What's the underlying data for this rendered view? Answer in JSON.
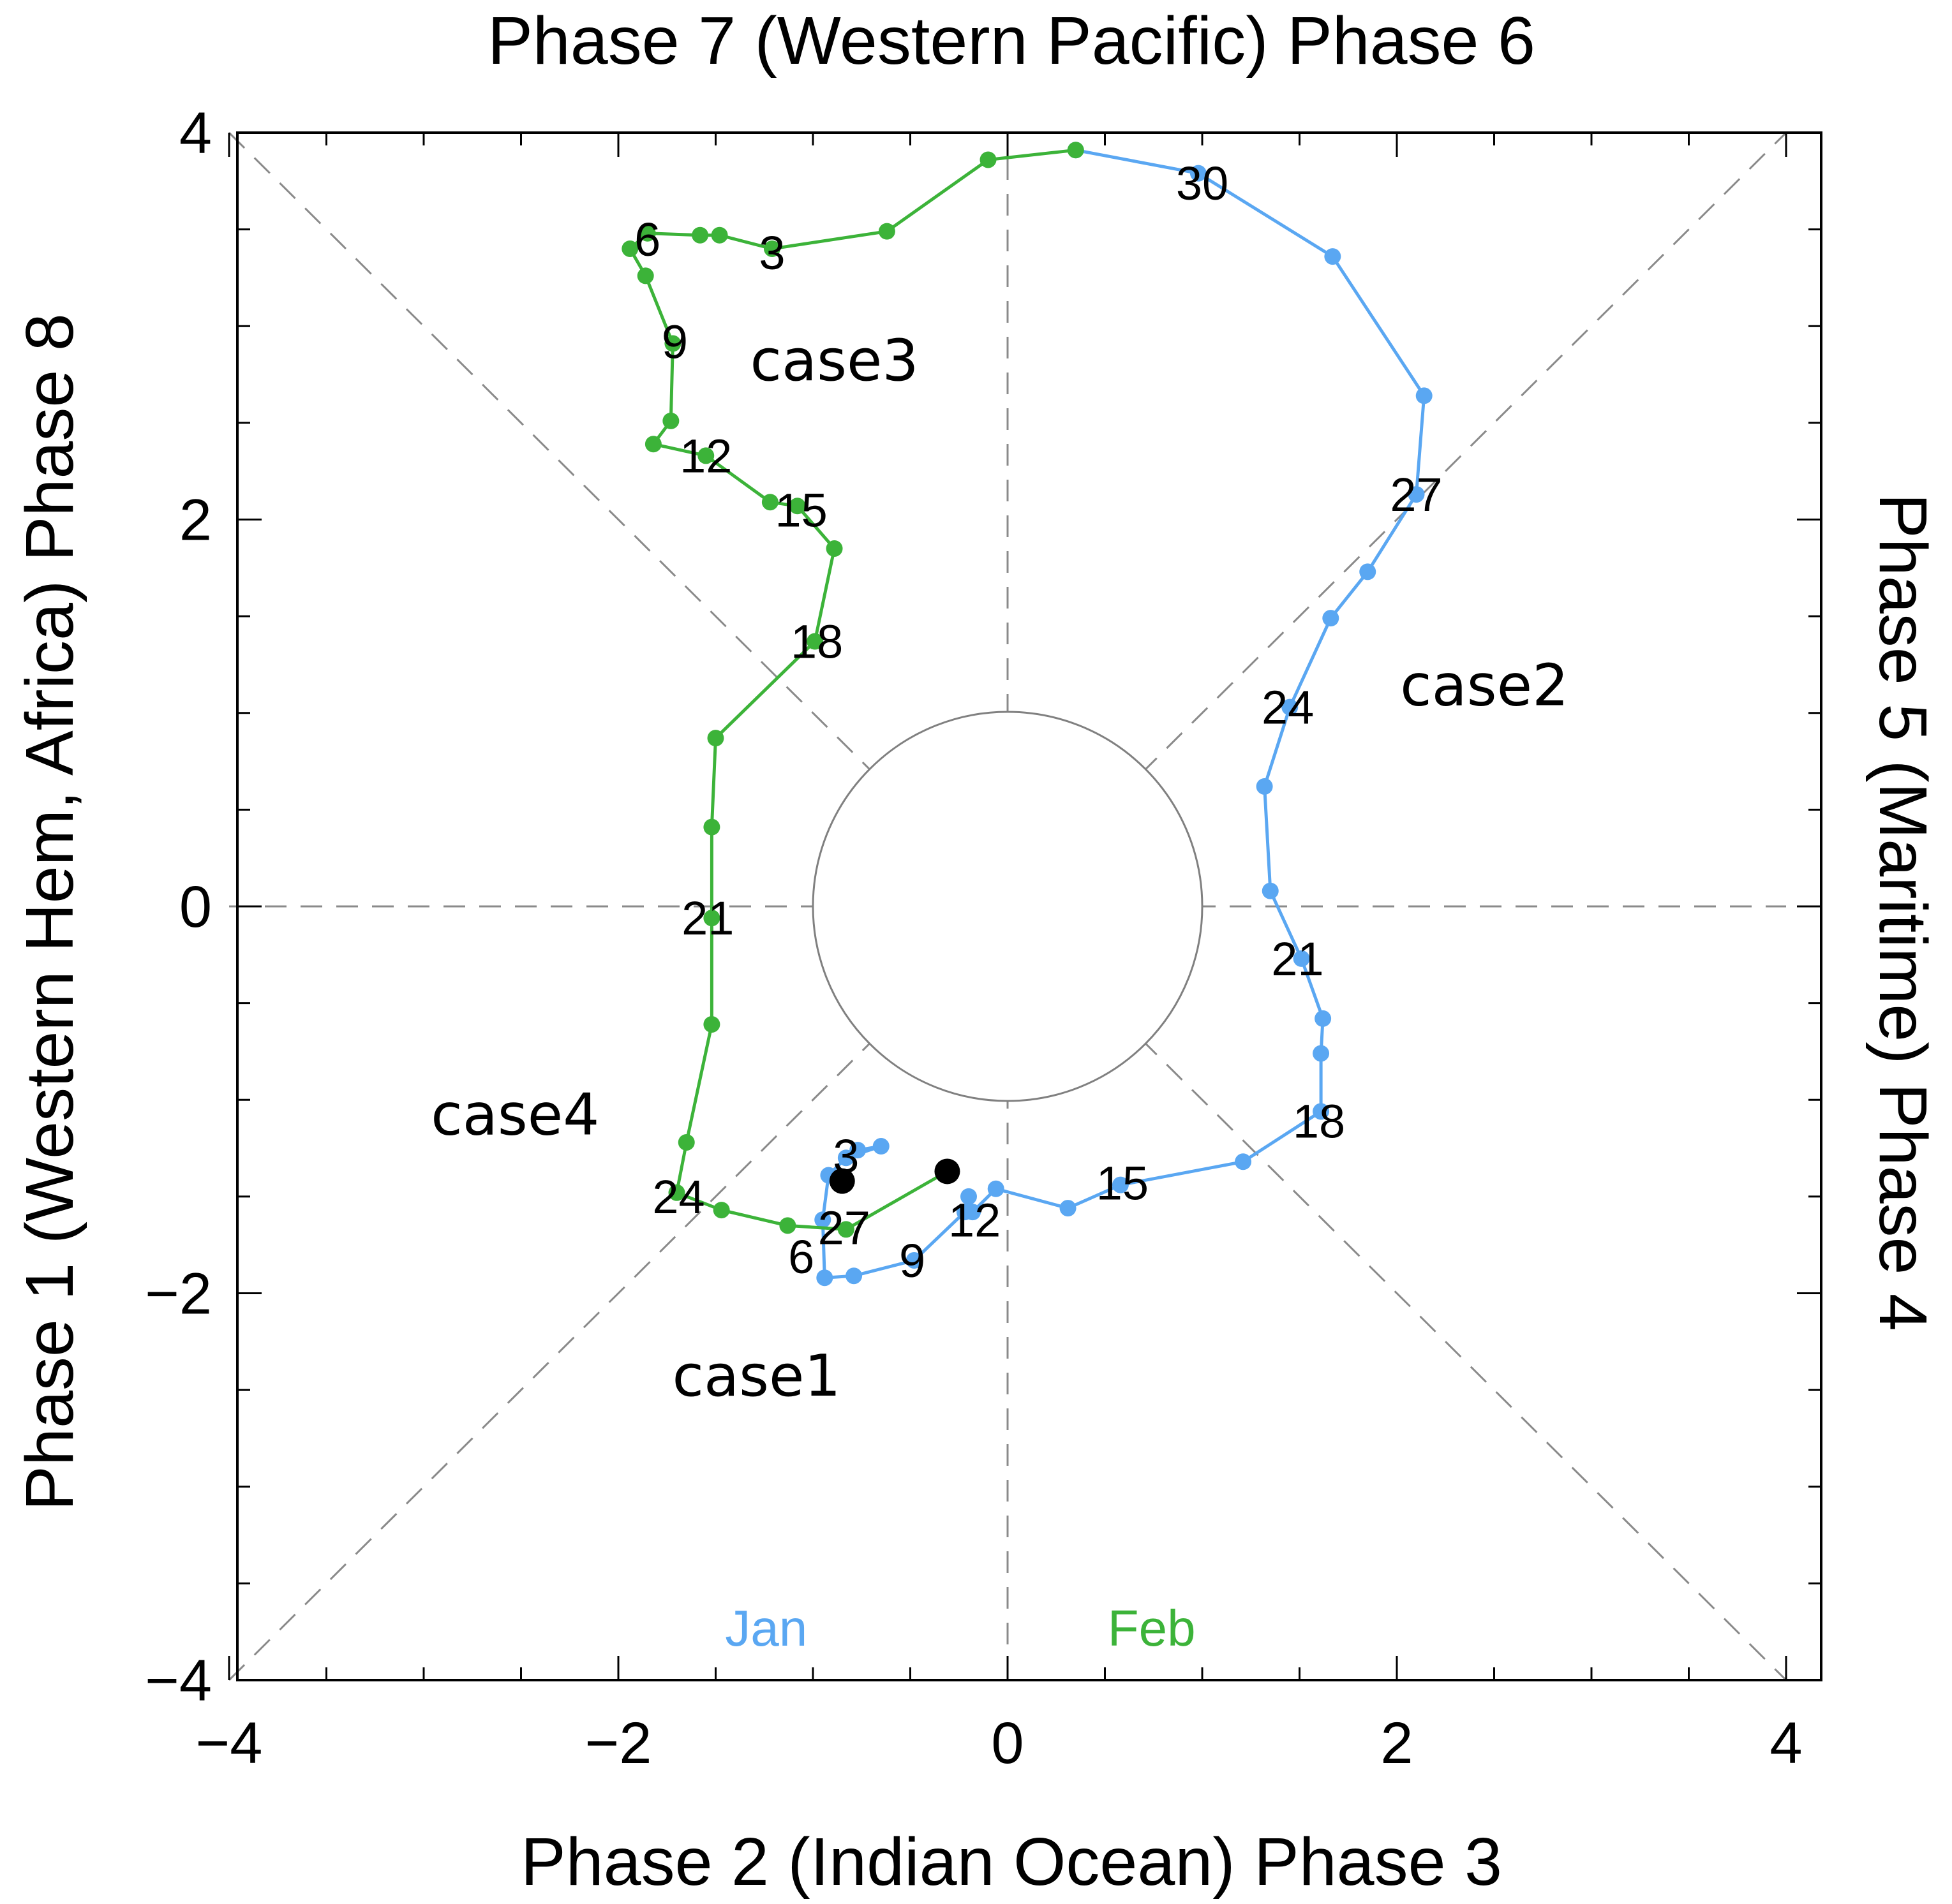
{
  "chart_data": {
    "type": "line",
    "title_top": "Phase 7 (Western Pacific) Phase 6",
    "xlabel": "Phase 2 (Indian Ocean) Phase 3",
    "ylabel": "Phase 1 (Western Hem, Africa) Phase 8",
    "ylabel_right": "Phase 5 (Maritime) Phase 4",
    "xlim": [
      -4,
      4
    ],
    "ylim": [
      -4,
      4
    ],
    "xticks": [
      {
        "value": -4,
        "label": "−4"
      },
      {
        "value": -2,
        "label": "−2"
      },
      {
        "value": 0,
        "label": "0"
      },
      {
        "value": 2,
        "label": "2"
      },
      {
        "value": 4,
        "label": "4"
      }
    ],
    "yticks": [
      {
        "value": -4,
        "label": "−4"
      },
      {
        "value": -2,
        "label": "−2"
      },
      {
        "value": 0,
        "label": "0"
      },
      {
        "value": 2,
        "label": "2"
      },
      {
        "value": 4,
        "label": "4"
      }
    ],
    "unit_circle_radius": 1,
    "series": [
      {
        "name": "Jan",
        "color": "#5aa7f2",
        "points": [
          {
            "x": -0.77,
            "y": -1.26
          },
          {
            "x": -0.65,
            "y": -1.24
          },
          {
            "x": -0.83,
            "y": -1.3
          },
          {
            "x": -0.92,
            "y": -1.39
          },
          {
            "x": -0.95,
            "y": -1.62
          },
          {
            "x": -0.94,
            "y": -1.92
          },
          {
            "x": -0.79,
            "y": -1.91
          },
          {
            "x": -0.48,
            "y": -1.83
          },
          {
            "x": -0.22,
            "y": -1.58
          },
          {
            "x": -0.2,
            "y": -1.5
          },
          {
            "x": -0.18,
            "y": -1.58
          },
          {
            "x": -0.06,
            "y": -1.46
          },
          {
            "x": 0.31,
            "y": -1.56
          },
          {
            "x": 0.58,
            "y": -1.44
          },
          {
            "x": 1.21,
            "y": -1.32
          },
          {
            "x": 1.61,
            "y": -1.06
          },
          {
            "x": 1.61,
            "y": -0.76
          },
          {
            "x": 1.62,
            "y": -0.58
          },
          {
            "x": 1.51,
            "y": -0.27
          },
          {
            "x": 1.35,
            "y": 0.08
          },
          {
            "x": 1.32,
            "y": 0.62
          },
          {
            "x": 1.45,
            "y": 1.03
          },
          {
            "x": 1.66,
            "y": 1.49
          },
          {
            "x": 1.85,
            "y": 1.73
          },
          {
            "x": 2.1,
            "y": 2.13
          },
          {
            "x": 2.14,
            "y": 2.64
          },
          {
            "x": 1.67,
            "y": 3.36
          },
          {
            "x": 0.98,
            "y": 3.79
          },
          {
            "x": 0.35,
            "y": 3.91
          }
        ]
      },
      {
        "name": "Feb",
        "color": "#3cb339",
        "points": [
          {
            "x": 0.35,
            "y": 3.91
          },
          {
            "x": -0.1,
            "y": 3.86
          },
          {
            "x": -0.62,
            "y": 3.49
          },
          {
            "x": -1.21,
            "y": 3.4
          },
          {
            "x": -1.48,
            "y": 3.47
          },
          {
            "x": -1.58,
            "y": 3.47
          },
          {
            "x": -1.85,
            "y": 3.48
          },
          {
            "x": -1.94,
            "y": 3.4
          },
          {
            "x": -1.86,
            "y": 3.26
          },
          {
            "x": -1.72,
            "y": 2.91
          },
          {
            "x": -1.73,
            "y": 2.51
          },
          {
            "x": -1.82,
            "y": 2.39
          },
          {
            "x": -1.55,
            "y": 2.33
          },
          {
            "x": -1.22,
            "y": 2.09
          },
          {
            "x": -1.08,
            "y": 2.07
          },
          {
            "x": -0.89,
            "y": 1.85
          },
          {
            "x": -0.99,
            "y": 1.37
          },
          {
            "x": -1.5,
            "y": 0.87
          },
          {
            "x": -1.52,
            "y": 0.41
          },
          {
            "x": -1.52,
            "y": -0.06
          },
          {
            "x": -1.52,
            "y": -0.61
          },
          {
            "x": -1.65,
            "y": -1.22
          },
          {
            "x": -1.7,
            "y": -1.48
          },
          {
            "x": -1.47,
            "y": -1.57
          },
          {
            "x": -1.13,
            "y": -1.65
          },
          {
            "x": -0.83,
            "y": -1.67
          },
          {
            "x": -0.31,
            "y": -1.37
          }
        ]
      }
    ],
    "start_markers": [
      {
        "x": -0.31,
        "y": -1.37
      },
      {
        "x": -0.85,
        "y": -1.42
      }
    ],
    "day_labels": [
      {
        "text": "30",
        "x": 1.0,
        "y": 3.74
      },
      {
        "text": "27",
        "x": 2.1,
        "y": 2.13
      },
      {
        "text": "24",
        "x": 1.44,
        "y": 1.03
      },
      {
        "text": "21",
        "x": 1.49,
        "y": -0.27
      },
      {
        "text": "18",
        "x": 1.6,
        "y": -1.11
      },
      {
        "text": "15",
        "x": 0.59,
        "y": -1.43
      },
      {
        "text": "12",
        "x": -0.17,
        "y": -1.62
      },
      {
        "text": "9",
        "x": -0.49,
        "y": -1.83
      },
      {
        "text": "6",
        "x": -1.06,
        "y": -1.81
      },
      {
        "text": "3",
        "x": -0.83,
        "y": -1.29
      },
      {
        "text": "6",
        "x": -1.85,
        "y": 3.45
      },
      {
        "text": "3",
        "x": -1.21,
        "y": 3.38
      },
      {
        "text": "9",
        "x": -1.71,
        "y": 2.92
      },
      {
        "text": "12",
        "x": -1.55,
        "y": 2.33
      },
      {
        "text": "15",
        "x": -1.06,
        "y": 2.05
      },
      {
        "text": "18",
        "x": -0.98,
        "y": 1.37
      },
      {
        "text": "21",
        "x": -1.54,
        "y": -0.06
      },
      {
        "text": "24",
        "x": -1.69,
        "y": -1.5
      },
      {
        "text": "27",
        "x": -0.84,
        "y": -1.66
      }
    ],
    "annotations": [
      {
        "text": "case3",
        "x": -0.89,
        "y": 2.82
      },
      {
        "text": "case2",
        "x": 2.45,
        "y": 1.14
      },
      {
        "text": "case4",
        "x": -2.53,
        "y": -1.08
      },
      {
        "text": "case1",
        "x": -1.29,
        "y": -2.43
      }
    ],
    "month_labels": [
      {
        "text": "Jan",
        "x": -1.24,
        "y": -3.73,
        "color": "#5aa7f2"
      },
      {
        "text": "Feb",
        "x": 0.74,
        "y": -3.73,
        "color": "#3cb339"
      }
    ]
  }
}
